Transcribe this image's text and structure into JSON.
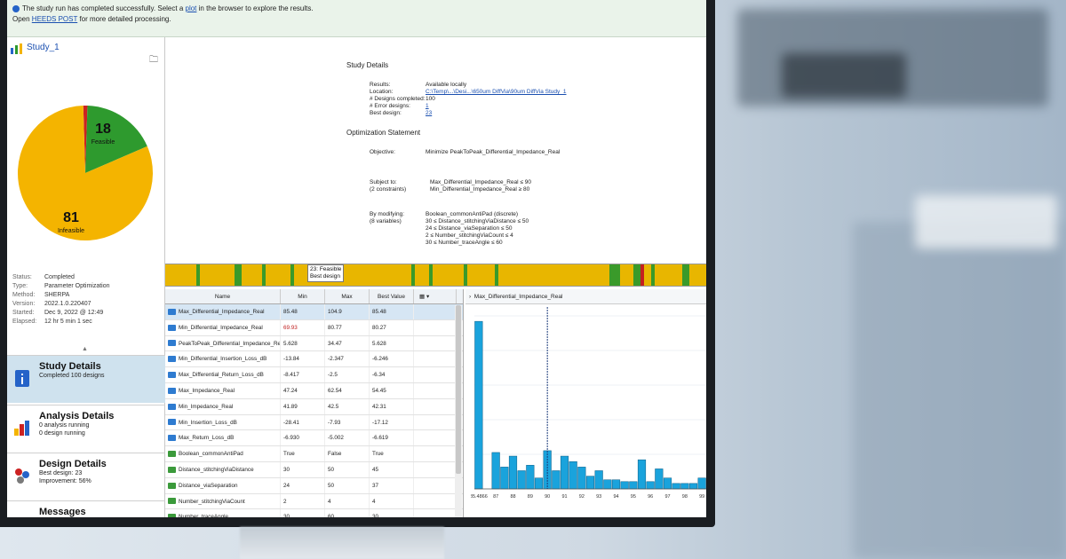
{
  "notification": {
    "text1": "The study run has completed successfully. Select a ",
    "link1": "plot",
    "text2": " in the browser to explore the results.",
    "text3": "Open ",
    "link2": "HEEDS POST",
    "text4": " for more detailed processing."
  },
  "study": {
    "title": "Study_1"
  },
  "pie": {
    "feasible": 18,
    "feasible_label": "Feasible",
    "infeasible": 81,
    "infeasible_label": "Infeasible",
    "error": 1,
    "colors": {
      "feasible": "#2e9a2e",
      "infeasible": "#f4b400",
      "error": "#cc2222"
    }
  },
  "status": {
    "status_k": "Status:",
    "status_v": "Completed",
    "type_k": "Type:",
    "type_v": "Parameter Optimization",
    "method_k": "Method:",
    "method_v": "SHERPA",
    "version_k": "Version:",
    "version_v": "2022.1.0.220407",
    "started_k": "Started:",
    "started_v": "Dec 9, 2022 @ 12:49",
    "elapsed_k": "Elapsed:",
    "elapsed_v": "12 hr 5 min 1 sec"
  },
  "nav": {
    "study": {
      "title": "Study Details",
      "sub1": "Completed 100 designs"
    },
    "analysis": {
      "title": "Analysis Details",
      "sub1": "0 analysis running",
      "sub2": "0 design running"
    },
    "design": {
      "title": "Design Details",
      "sub1": "Best design: 23",
      "sub2": "Improvement: 56%"
    },
    "messages": {
      "title": "Messages"
    }
  },
  "details": {
    "heading": "Study Details",
    "results_k": "Results:",
    "results_v": "Available locally",
    "location_k": "Location:",
    "location_v": "C:\\Temp\\...\\Desi...\\650um DiffVia\\90um DiffVia Study_1",
    "completed_k": "# Designs completed:",
    "completed_v": "100",
    "error_k": "# Error designs:",
    "error_v": "1",
    "best_k": "Best design:",
    "best_v": "23",
    "opt_heading": "Optimization Statement",
    "objective_k": "Objective:",
    "objective_v": "Minimize PeakToPeak_Differential_Impedance_Real",
    "subject_k": "Subject to:",
    "subject_k2": "(2 constraints)",
    "c1": "Max_Differential_Impedance_Real ≤ 90",
    "c2": "Min_Differential_Impedance_Real ≥ 80",
    "modifying_k": "By modifying:",
    "modifying_k2": "(8 variables)",
    "v1": "Boolean_commonAntiPad (discrete)",
    "v2": "30  ≤  Distance_stitchingViaDistance  ≤  50",
    "v3": "24  ≤  Distance_viaSeparation  ≤  50",
    "v4": "2  ≤  Number_stitchingViaCount  ≤  4",
    "v5": "30  ≤  Number_traceAngle  ≤  60"
  },
  "strip_tip": {
    "line1": "23: Feasible",
    "line2": "Best design"
  },
  "table": {
    "headers": {
      "name": "Name",
      "min": "Min",
      "max": "Max",
      "best": "Best Value"
    },
    "rows": [
      {
        "name": "Max_Differential_Impedance_Real",
        "min": "85.48",
        "max": "104.9",
        "best": "85.48"
      },
      {
        "name": "Min_Differential_Impedance_Real",
        "min": "69.93",
        "max": "80.77",
        "best": "80.27"
      },
      {
        "name": "PeakToPeak_Differential_Impedance_Real",
        "min": "5.628",
        "max": "34.47",
        "best": "5.628"
      },
      {
        "name": "Min_Differential_Insertion_Loss_dB",
        "min": "-13.84",
        "max": "-2.347",
        "best": "-6.246"
      },
      {
        "name": "Max_Differential_Return_Loss_dB",
        "min": "-8.417",
        "max": "-2.5",
        "best": "-6.34"
      },
      {
        "name": "Max_Impedance_Real",
        "min": "47.24",
        "max": "62.54",
        "best": "54.45"
      },
      {
        "name": "Min_Impedance_Real",
        "min": "41.89",
        "max": "42.5",
        "best": "42.31"
      },
      {
        "name": "Min_Insertion_Loss_dB",
        "min": "-28.41",
        "max": "-7.93",
        "best": "-17.12"
      },
      {
        "name": "Max_Return_Loss_dB",
        "min": "-6.930",
        "max": "-5.002",
        "best": "-6.619"
      },
      {
        "name": "Boolean_commonAntiPad",
        "min": "True",
        "max": "False",
        "best": "True"
      },
      {
        "name": "Distance_stitchingViaDistance",
        "min": "30",
        "max": "50",
        "best": "45"
      },
      {
        "name": "Distance_viaSeparation",
        "min": "24",
        "max": "50",
        "best": "37"
      },
      {
        "name": "Number_stitchingViaCount",
        "min": "2",
        "max": "4",
        "best": "4"
      },
      {
        "name": "Number_traceAngle",
        "min": "30",
        "max": "60",
        "best": "30"
      }
    ]
  },
  "histogram": {
    "title": "Max_Differential_Impedance_Real",
    "bar_color": "#1aa3dc"
  },
  "chart_data": {
    "type": "bar",
    "title": "Max_Differential_Impedance_Real",
    "categories": [
      "85.4866",
      "",
      "87",
      "",
      "88",
      "",
      "89",
      "",
      "90",
      "",
      "91",
      "",
      "92",
      "",
      "93",
      "",
      "94",
      "",
      "95",
      "",
      "96",
      "",
      "97",
      "",
      "98",
      "",
      "99"
    ],
    "values": [
      92,
      0,
      20,
      12,
      18,
      10,
      13,
      6,
      21,
      10,
      18,
      15,
      12,
      7,
      10,
      5,
      5,
      4,
      4,
      16,
      4,
      11,
      6,
      3,
      3,
      3,
      6
    ],
    "marker_x": "90"
  }
}
